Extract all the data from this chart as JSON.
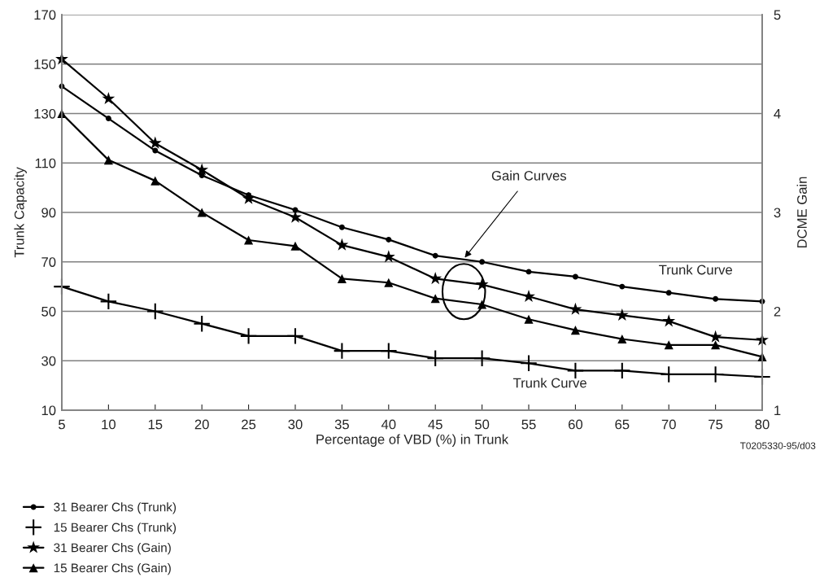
{
  "chart_data": {
    "type": "line",
    "xlabel": "Percentage of VBD (%) in Trunk",
    "ylabel": "Trunk Capacity",
    "y2label": "DCME Gain",
    "x": [
      5,
      10,
      15,
      20,
      25,
      30,
      35,
      40,
      45,
      50,
      55,
      60,
      65,
      70,
      75,
      80
    ],
    "series": [
      {
        "name": "31 Bearer Chs (Trunk)",
        "color": "#000000",
        "marker": "circle",
        "values": [
          141,
          128,
          115,
          105,
          97,
          91,
          84,
          79,
          72.5,
          70,
          66,
          64,
          60,
          57.5,
          55,
          54
        ]
      },
      {
        "name": "15 Bearer Chs (Trunk)",
        "color": "#000000",
        "marker": "cross",
        "values": [
          60,
          54,
          50,
          45,
          40,
          40,
          34,
          34,
          31,
          31,
          29,
          26,
          26,
          24.5,
          24.5,
          23.5
        ]
      },
      {
        "name": "31 Bearer Chs (Gain)",
        "color": "#000000",
        "marker": "star",
        "axis": "y2",
        "values": [
          4.55,
          4.15,
          3.7,
          3.43,
          3.14,
          2.95,
          2.67,
          2.55,
          2.33,
          2.27,
          2.15,
          2.02,
          1.96,
          1.9,
          1.74,
          1.71
        ]
      },
      {
        "name": "15 Bearer Chs (Gain)",
        "color": "#000000",
        "marker": "triangle",
        "axis": "y2",
        "values": [
          4.0,
          3.53,
          3.32,
          3.0,
          2.72,
          2.66,
          2.33,
          2.29,
          2.13,
          2.07,
          1.92,
          1.81,
          1.72,
          1.66,
          1.66,
          1.54
        ]
      }
    ],
    "xlim": [
      5,
      80
    ],
    "xticks": [
      5,
      10,
      15,
      20,
      25,
      30,
      35,
      40,
      45,
      50,
      55,
      60,
      65,
      70,
      75,
      80
    ],
    "ylim": [
      10,
      170
    ],
    "yticks": [
      10,
      30,
      50,
      70,
      90,
      110,
      130,
      150,
      170
    ],
    "y2lim": [
      1,
      5
    ],
    "y2ticks": [
      1,
      2,
      3,
      4,
      5
    ],
    "grid": "y",
    "legend": "bottom left",
    "annotations": [
      {
        "text": "Gain Curves",
        "x": 48,
        "y": 71
      },
      "Trunk Curve",
      "Trunk Curve",
      "T0205330-95/d03"
    ]
  }
}
